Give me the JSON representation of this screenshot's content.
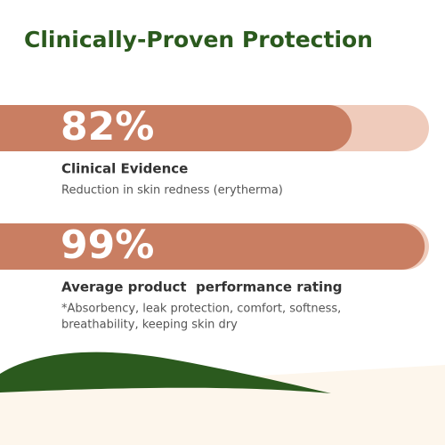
{
  "chart_data": {
    "type": "bar",
    "title": "Clinically-Proven Protection",
    "categories": [
      "Clinical Evidence",
      "Average product  performance rating"
    ],
    "descriptions": [
      [
        "Reduction in skin redness (erytherma)"
      ],
      [
        "*Absorbency, leak protection, comfort, softness,",
        "breathability, keeping skin dry"
      ]
    ],
    "values": [
      82,
      99
    ],
    "value_labels": [
      "82%",
      "99%"
    ],
    "color": "#c97e62",
    "track_color": "#efcbbb",
    "title_color": "#2b5a1e",
    "xlim": [
      0,
      100
    ]
  }
}
